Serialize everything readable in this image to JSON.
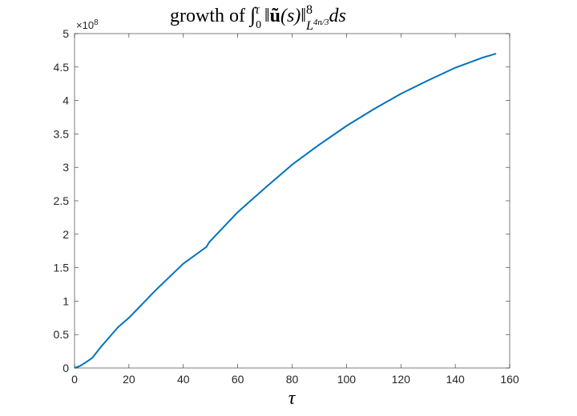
{
  "chart_data": {
    "type": "line",
    "title_parts": [
      "growth of ",
      "∫",
      "0",
      "τ",
      " ‖",
      "ũ",
      "(s)‖",
      "8",
      "L",
      "4n/3",
      "ds"
    ],
    "xlabel": "τ",
    "y_multiplier": {
      "base": "×10",
      "exponent": "8"
    },
    "x": [
      0,
      2,
      4,
      6.5,
      10,
      16,
      20,
      30,
      40,
      48.5,
      49.5,
      60,
      70,
      80,
      90,
      100,
      110,
      120,
      130,
      140,
      150,
      155
    ],
    "series": [
      {
        "name": "growth",
        "color": "#0072bd",
        "values": [
          0,
          0.03,
          0.08,
          0.15,
          0.33,
          0.61,
          0.75,
          1.17,
          1.56,
          1.81,
          1.88,
          2.33,
          2.69,
          3.04,
          3.34,
          3.62,
          3.87,
          4.1,
          4.3,
          4.49,
          4.64,
          4.7
        ]
      }
    ],
    "xlim": [
      0,
      160
    ],
    "xticks": [
      0,
      20,
      40,
      60,
      80,
      100,
      120,
      140,
      160
    ],
    "ylim": [
      0,
      5
    ],
    "yticks": [
      0,
      0.5,
      1,
      1.5,
      2,
      2.5,
      3,
      3.5,
      4,
      4.5,
      5
    ],
    "grid": false
  }
}
